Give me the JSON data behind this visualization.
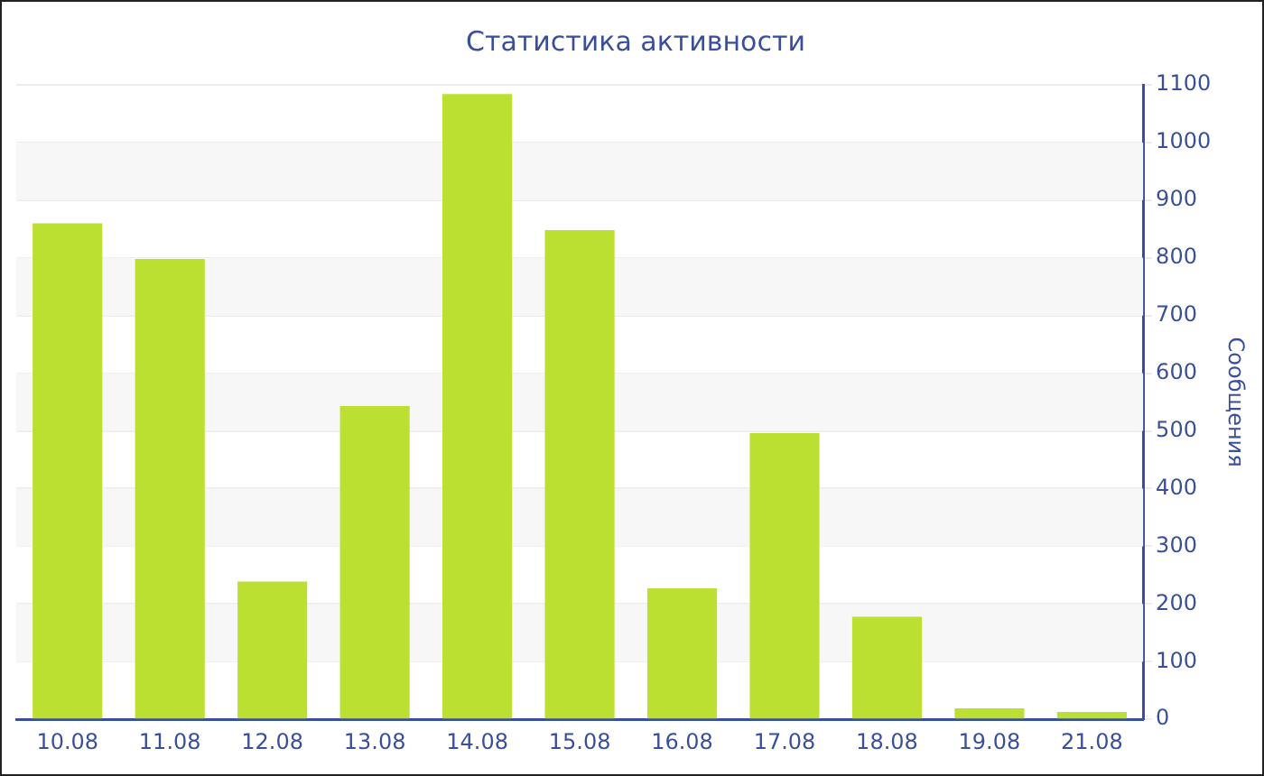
{
  "chart_data": {
    "type": "bar",
    "title": "Статистика активности",
    "ylabel": "Сообщения",
    "categories": [
      "10.08",
      "11.08",
      "12.08",
      "13.08",
      "14.08",
      "15.08",
      "16.08",
      "17.08",
      "18.08",
      "19.08",
      "21.08"
    ],
    "values": [
      860,
      798,
      239,
      543,
      1084,
      848,
      227,
      496,
      178,
      19,
      13
    ],
    "color": "#bce032",
    "ylim": [
      0,
      1100
    ],
    "yticks": [
      0,
      100,
      200,
      300,
      400,
      500,
      600,
      700,
      800,
      900,
      1000,
      1100
    ],
    "grid": "y",
    "legend": false
  }
}
